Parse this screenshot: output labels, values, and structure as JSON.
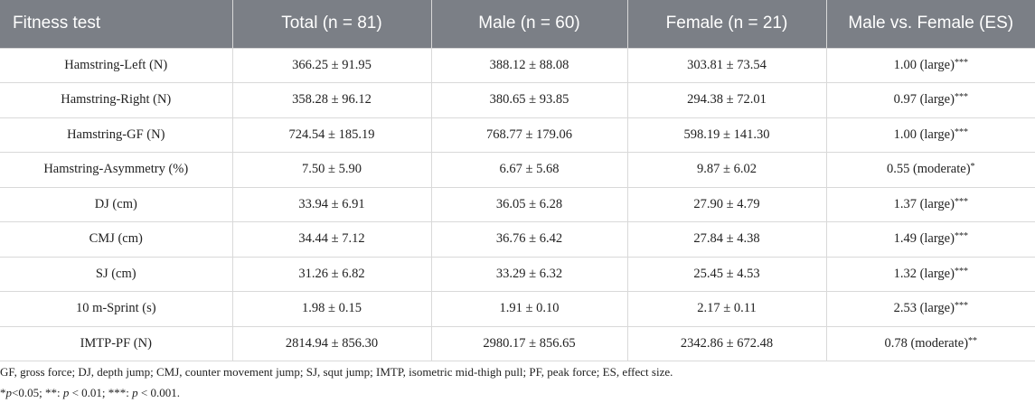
{
  "table": {
    "headers": [
      "Fitness test",
      "Total (n = 81)",
      "Male (n = 60)",
      "Female (n = 21)",
      "Male vs. Female (ES)"
    ],
    "rows": [
      {
        "test": "Hamstring-Left (N)",
        "total": "366.25 ± 91.95",
        "male": "388.12 ± 88.08",
        "female": "303.81 ± 73.54",
        "es": "1.00 (large)",
        "sig": "***"
      },
      {
        "test": "Hamstring-Right (N)",
        "total": "358.28 ± 96.12",
        "male": "380.65 ± 93.85",
        "female": "294.38 ± 72.01",
        "es": "0.97 (large)",
        "sig": "***"
      },
      {
        "test": "Hamstring-GF (N)",
        "total": "724.54 ± 185.19",
        "male": "768.77 ± 179.06",
        "female": "598.19 ± 141.30",
        "es": "1.00 (large)",
        "sig": "***"
      },
      {
        "test": "Hamstring-Asymmetry (%)",
        "total": "7.50 ± 5.90",
        "male": "6.67 ± 5.68",
        "female": "9.87 ± 6.02",
        "es": "0.55 (moderate)",
        "sig": "*"
      },
      {
        "test": "DJ (cm)",
        "total": "33.94 ± 6.91",
        "male": "36.05 ± 6.28",
        "female": "27.90 ± 4.79",
        "es": "1.37 (large)",
        "sig": "***"
      },
      {
        "test": "CMJ (cm)",
        "total": "34.44 ± 7.12",
        "male": "36.76 ± 6.42",
        "female": "27.84 ± 4.38",
        "es": "1.49 (large)",
        "sig": "***"
      },
      {
        "test": "SJ (cm)",
        "total": "31.26 ± 6.82",
        "male": "33.29 ± 6.32",
        "female": "25.45 ± 4.53",
        "es": "1.32 (large)",
        "sig": "***"
      },
      {
        "test": "10 m-Sprint (s)",
        "total": "1.98 ± 0.15",
        "male": "1.91 ± 0.10",
        "female": "2.17 ± 0.11",
        "es": "2.53 (large)",
        "sig": "***"
      },
      {
        "test": "IMTP-PF (N)",
        "total": "2814.94 ± 856.30",
        "male": "2980.17 ± 856.65",
        "female": "2342.86 ± 672.48",
        "es": "0.78 (moderate)",
        "sig": "**"
      }
    ]
  },
  "notes": {
    "abbreviations": "GF, gross force; DJ, depth jump; CMJ, counter movement jump; SJ, squt jump; IMTP, isometric mid-thigh pull; PF, peak force; ES, effect size.",
    "sig_star1": "*",
    "sig_p1": "p",
    "sig_t1": "<0.05; **: ",
    "sig_p2": "p",
    "sig_t2": " < 0.01; ***: ",
    "sig_p3": "p",
    "sig_t3": " < 0.001."
  },
  "colors": {
    "header_bg": "#7b7f86",
    "header_text": "#ffffff",
    "grid": "#d9d9d9"
  }
}
